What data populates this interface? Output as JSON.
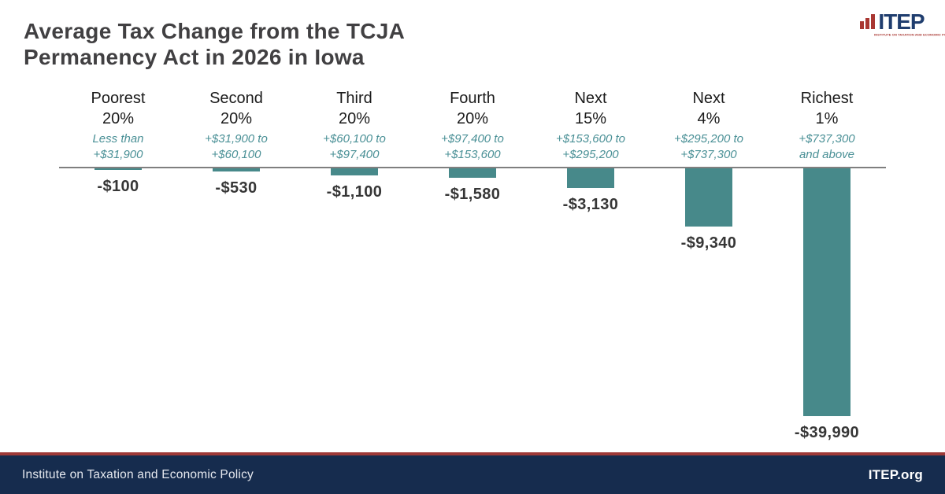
{
  "title": {
    "line1": "Average Tax Change from the TCJA",
    "line2": "Permanency Act in 2026 in Iowa"
  },
  "logo": {
    "wordmark": "ITEP",
    "tagline": "INSTITUTE ON TAXATION AND ECONOMIC POLICY"
  },
  "chart_data": {
    "type": "bar",
    "title": "Average Tax Change from the TCJA Permanency Act in 2026 in Iowa",
    "categories": [
      "Poorest 20%",
      "Second 20%",
      "Third 20%",
      "Fourth 20%",
      "Next 15%",
      "Next 4%",
      "Richest 1%"
    ],
    "group_lines": [
      [
        "Poorest",
        "20%"
      ],
      [
        "Second",
        "20%"
      ],
      [
        "Third",
        "20%"
      ],
      [
        "Fourth",
        "20%"
      ],
      [
        "Next",
        "15%"
      ],
      [
        "Next",
        "4%"
      ],
      [
        "Richest",
        "1%"
      ]
    ],
    "income_ranges": [
      [
        "Less than",
        "+$31,900"
      ],
      [
        "+$31,900 to",
        "+$60,100"
      ],
      [
        "+$60,100 to",
        "+$97,400"
      ],
      [
        "+$97,400 to",
        "+$153,600"
      ],
      [
        "+$153,600 to",
        "+$295,200"
      ],
      [
        "+$295,200 to",
        "+$737,300"
      ],
      [
        "+$737,300",
        "and above"
      ]
    ],
    "values": [
      -100,
      -530,
      -1100,
      -1580,
      -3130,
      -9340,
      -39990
    ],
    "value_labels": [
      "-$100",
      "-$530",
      "-$1,100",
      "-$1,580",
      "-$3,130",
      "-$9,340",
      "-$39,990"
    ],
    "ylim": [
      -40000,
      0
    ],
    "grid": false,
    "legend": "none",
    "bar_color": "#47898A",
    "baseline_color": "#7F7F7F",
    "range_text_color": "#4A9096"
  },
  "footer": {
    "org_name": "Institute on Taxation and Economic Policy",
    "site_name": "ITEP.org"
  },
  "colors": {
    "title_text": "#414042",
    "value_text": "#363636",
    "footer_navy": "#162C4E",
    "footer_red": "#9E3937",
    "logo_navy": "#1F3D6E",
    "logo_red": "#A93732"
  }
}
